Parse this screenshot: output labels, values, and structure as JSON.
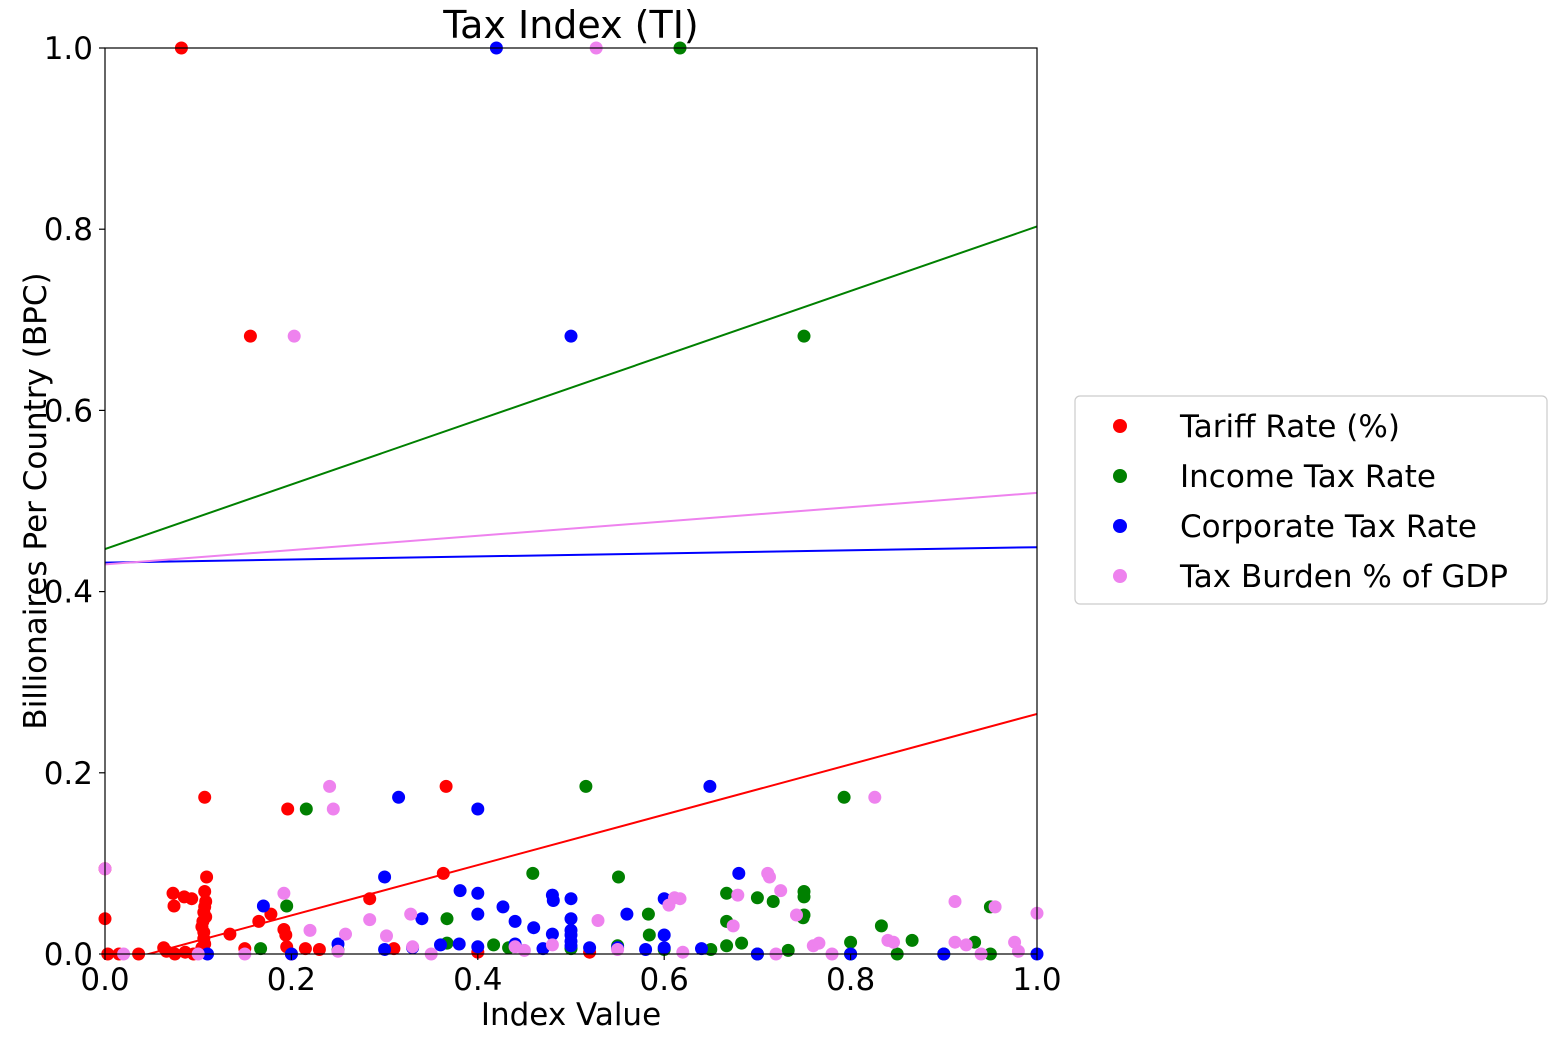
{
  "chart_data": {
    "type": "scatter",
    "title": "Tax Index (TI)",
    "xlabel": "Index Value",
    "ylabel": "Billionaires Per Country (BPC)",
    "xlim": [
      0.0,
      1.0
    ],
    "ylim": [
      0.0,
      1.0
    ],
    "x_ticks": [
      "0.0",
      "0.2",
      "0.4",
      "0.6",
      "0.8",
      "1.0"
    ],
    "y_ticks": [
      "0.0",
      "0.2",
      "0.4",
      "0.6",
      "0.8",
      "1.0"
    ],
    "grid": false,
    "legend_position": "right",
    "series": [
      {
        "name": "Tariff Rate (%)",
        "color": "#ff0000",
        "trend": [
          [
            0.0,
            -0.013
          ],
          [
            1.0,
            0.265
          ]
        ],
        "points": [
          [
            0.082,
            1.0
          ],
          [
            0.156,
            0.682
          ],
          [
            0.107,
            0.173
          ],
          [
            0.196,
            0.16
          ],
          [
            0.366,
            0.185
          ],
          [
            0.363,
            0.089
          ],
          [
            0.284,
            0.061
          ],
          [
            0.109,
            0.085
          ],
          [
            0.0,
            0.039
          ],
          [
            0.073,
            0.067
          ],
          [
            0.085,
            0.063
          ],
          [
            0.093,
            0.061
          ],
          [
            0.074,
            0.053
          ],
          [
            0.107,
            0.069
          ],
          [
            0.108,
            0.058
          ],
          [
            0.107,
            0.052
          ],
          [
            0.106,
            0.046
          ],
          [
            0.108,
            0.041
          ],
          [
            0.105,
            0.036
          ],
          [
            0.104,
            0.03
          ],
          [
            0.106,
            0.024
          ],
          [
            0.106,
            0.017
          ],
          [
            0.107,
            0.011
          ],
          [
            0.104,
            0.007
          ],
          [
            0.178,
            0.044
          ],
          [
            0.165,
            0.036
          ],
          [
            0.134,
            0.022
          ],
          [
            0.192,
            0.027
          ],
          [
            0.194,
            0.021
          ],
          [
            0.195,
            0.008
          ],
          [
            0.0,
            0.094
          ],
          [
            0.003,
            0.0
          ],
          [
            0.015,
            0.0
          ],
          [
            0.036,
            0.0
          ],
          [
            0.063,
            0.007
          ],
          [
            0.066,
            0.003
          ],
          [
            0.075,
            0.0
          ],
          [
            0.086,
            0.002
          ],
          [
            0.095,
            0.0
          ],
          [
            0.15,
            0.006
          ],
          [
            0.2,
            0.0
          ],
          [
            0.215,
            0.006
          ],
          [
            0.23,
            0.005
          ],
          [
            0.31,
            0.006
          ],
          [
            0.4,
            0.002
          ],
          [
            0.52,
            0.002
          ]
        ]
      },
      {
        "name": "Income Tax Rate",
        "color": "#008000",
        "trend": [
          [
            0.0,
            0.447
          ],
          [
            1.0,
            0.803
          ]
        ],
        "points": [
          [
            0.617,
            1.0
          ],
          [
            0.75,
            0.682
          ],
          [
            0.216,
            0.16
          ],
          [
            0.516,
            0.185
          ],
          [
            0.793,
            0.173
          ],
          [
            0.459,
            0.089
          ],
          [
            0.551,
            0.085
          ],
          [
            0.667,
            0.067
          ],
          [
            0.7,
            0.062
          ],
          [
            0.717,
            0.058
          ],
          [
            0.75,
            0.069
          ],
          [
            0.75,
            0.063
          ],
          [
            0.75,
            0.043
          ],
          [
            0.749,
            0.04
          ],
          [
            0.195,
            0.053
          ],
          [
            0.367,
            0.039
          ],
          [
            0.583,
            0.044
          ],
          [
            0.584,
            0.021
          ],
          [
            0.667,
            0.036
          ],
          [
            0.833,
            0.031
          ],
          [
            0.683,
            0.012
          ],
          [
            0.8,
            0.013
          ],
          [
            0.866,
            0.015
          ],
          [
            0.933,
            0.013
          ],
          [
            0.95,
            0.052
          ],
          [
            0.167,
            0.006
          ],
          [
            0.25,
            0.004
          ],
          [
            0.367,
            0.012
          ],
          [
            0.417,
            0.01
          ],
          [
            0.433,
            0.007
          ],
          [
            0.5,
            0.006
          ],
          [
            0.55,
            0.009
          ],
          [
            0.6,
            0.005
          ],
          [
            0.65,
            0.005
          ],
          [
            0.667,
            0.009
          ],
          [
            0.7,
            0.0
          ],
          [
            0.733,
            0.004
          ],
          [
            0.8,
            0.0
          ],
          [
            0.85,
            0.0
          ],
          [
            0.9,
            0.0
          ],
          [
            0.95,
            0.0
          ]
        ]
      },
      {
        "name": "Corporate Tax Rate",
        "color": "#0000ff",
        "trend": [
          [
            0.0,
            0.432
          ],
          [
            1.0,
            0.449
          ]
        ],
        "points": [
          [
            0.42,
            1.0
          ],
          [
            0.5,
            0.682
          ],
          [
            0.315,
            0.173
          ],
          [
            0.4,
            0.16
          ],
          [
            0.649,
            0.185
          ],
          [
            0.3,
            0.085
          ],
          [
            0.68,
            0.089
          ],
          [
            0.381,
            0.07
          ],
          [
            0.4,
            0.067
          ],
          [
            0.427,
            0.052
          ],
          [
            0.48,
            0.065
          ],
          [
            0.481,
            0.059
          ],
          [
            0.5,
            0.061
          ],
          [
            0.6,
            0.061
          ],
          [
            0.17,
            0.053
          ],
          [
            0.4,
            0.044
          ],
          [
            0.44,
            0.036
          ],
          [
            0.46,
            0.029
          ],
          [
            0.34,
            0.039
          ],
          [
            0.5,
            0.039
          ],
          [
            0.56,
            0.044
          ],
          [
            0.48,
            0.022
          ],
          [
            0.5,
            0.026
          ],
          [
            0.5,
            0.021
          ],
          [
            0.5,
            0.014
          ],
          [
            0.5,
            0.009
          ],
          [
            0.6,
            0.021
          ],
          [
            0.25,
            0.011
          ],
          [
            0.3,
            0.005
          ],
          [
            0.33,
            0.007
          ],
          [
            0.36,
            0.01
          ],
          [
            0.38,
            0.011
          ],
          [
            0.4,
            0.008
          ],
          [
            0.44,
            0.011
          ],
          [
            0.47,
            0.006
          ],
          [
            0.52,
            0.007
          ],
          [
            0.55,
            0.007
          ],
          [
            0.58,
            0.005
          ],
          [
            0.6,
            0.007
          ],
          [
            0.64,
            0.006
          ],
          [
            0.7,
            0.0
          ],
          [
            0.8,
            0.0
          ],
          [
            0.9,
            0.0
          ],
          [
            1.0,
            0.0
          ],
          [
            0.11,
            0.0
          ],
          [
            0.2,
            0.0
          ]
        ]
      },
      {
        "name": "Tax Burden % of GDP",
        "color": "#ee82ee",
        "trend": [
          [
            0.0,
            0.43
          ],
          [
            1.0,
            0.509
          ]
        ],
        "points": [
          [
            0.527,
            1.0
          ],
          [
            0.203,
            0.682
          ],
          [
            0.241,
            0.185
          ],
          [
            0.245,
            0.16
          ],
          [
            0.826,
            0.173
          ],
          [
            0.0,
            0.094
          ],
          [
            0.192,
            0.067
          ],
          [
            0.711,
            0.089
          ],
          [
            0.713,
            0.085
          ],
          [
            0.725,
            0.07
          ],
          [
            0.679,
            0.065
          ],
          [
            0.611,
            0.062
          ],
          [
            0.617,
            0.061
          ],
          [
            0.605,
            0.054
          ],
          [
            0.912,
            0.058
          ],
          [
            0.955,
            0.052
          ],
          [
            0.742,
            0.043
          ],
          [
            1.0,
            0.045
          ],
          [
            0.328,
            0.044
          ],
          [
            0.284,
            0.038
          ],
          [
            0.529,
            0.037
          ],
          [
            0.674,
            0.031
          ],
          [
            0.22,
            0.026
          ],
          [
            0.258,
            0.022
          ],
          [
            0.302,
            0.02
          ],
          [
            0.84,
            0.015
          ],
          [
            0.846,
            0.013
          ],
          [
            0.912,
            0.013
          ],
          [
            0.924,
            0.01
          ],
          [
            0.976,
            0.013
          ],
          [
            0.76,
            0.009
          ],
          [
            0.766,
            0.012
          ],
          [
            0.48,
            0.01
          ],
          [
            0.44,
            0.008
          ],
          [
            0.33,
            0.008
          ],
          [
            0.02,
            0.0
          ],
          [
            0.1,
            0.0
          ],
          [
            0.15,
            0.0
          ],
          [
            0.25,
            0.003
          ],
          [
            0.35,
            0.0
          ],
          [
            0.45,
            0.004
          ],
          [
            0.55,
            0.005
          ],
          [
            0.62,
            0.002
          ],
          [
            0.72,
            0.0
          ],
          [
            0.78,
            0.0
          ],
          [
            0.94,
            0.0
          ],
          [
            0.98,
            0.003
          ]
        ]
      }
    ]
  }
}
